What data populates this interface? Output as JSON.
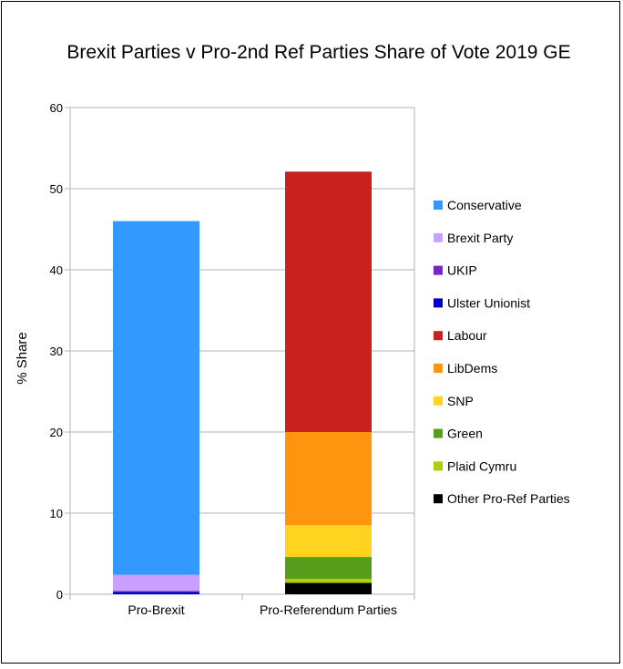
{
  "chart_data": {
    "type": "bar",
    "stacked": true,
    "title": "Brexit Parties v Pro-2nd Ref Parties Share of Vote 2019 GE",
    "xlabel": "",
    "ylabel": "% Share",
    "ylim": [
      0,
      60
    ],
    "yticks": [
      0,
      10,
      20,
      30,
      40,
      50,
      60
    ],
    "grid": true,
    "legend_position": "right",
    "categories": [
      "Pro-Brexit",
      "Pro-Referendum Parties"
    ],
    "series": [
      {
        "name": "Other Pro-Ref Parties",
        "color": "#000000",
        "values": [
          0,
          1.4
        ]
      },
      {
        "name": "Plaid Cymru",
        "color": "#aecf00",
        "values": [
          0,
          0.5
        ]
      },
      {
        "name": "Green",
        "color": "#579d1c",
        "values": [
          0,
          2.7
        ]
      },
      {
        "name": "SNP",
        "color": "#ffd320",
        "values": [
          0,
          3.9
        ]
      },
      {
        "name": "LibDems",
        "color": "#ff950e",
        "values": [
          0,
          11.5
        ]
      },
      {
        "name": "Labour",
        "color": "#c9211e",
        "values": [
          0,
          32.1
        ]
      },
      {
        "name": "Ulster Unionist",
        "color": "#0000cc",
        "values": [
          0.3,
          0
        ]
      },
      {
        "name": "UKIP",
        "color": "#7e21c8",
        "values": [
          0.1,
          0
        ]
      },
      {
        "name": "Brexit Party",
        "color": "#c9a0ff",
        "values": [
          2.0,
          0
        ]
      },
      {
        "name": "Conservative",
        "color": "#3399ff",
        "values": [
          43.6,
          0
        ]
      }
    ],
    "legend_order": [
      "Conservative",
      "Brexit Party",
      "UKIP",
      "Ulster Unionist",
      "Labour",
      "LibDems",
      "SNP",
      "Green",
      "Plaid Cymru",
      "Other Pro-Ref Parties"
    ]
  }
}
